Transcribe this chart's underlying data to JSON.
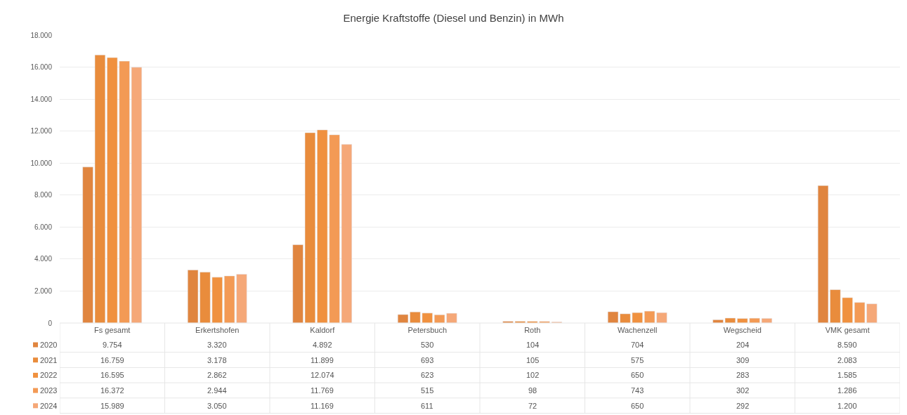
{
  "chart_data": {
    "type": "bar",
    "title": "Energie Kraftstoffe (Diesel und Benzin) in MWh",
    "categories": [
      "Fs gesamt",
      "Erkertshofen",
      "Kaldorf",
      "Petersbuch",
      "Roth",
      "Wachenzell",
      "Wegscheid",
      "VMK gesamt"
    ],
    "series": [
      {
        "name": "2020",
        "color": "#e0853f",
        "values": [
          9754,
          3320,
          4892,
          530,
          104,
          704,
          204,
          8590
        ],
        "value_labels": [
          "9.754",
          "3.320",
          "4.892",
          "530",
          "104",
          "704",
          "204",
          "8.590"
        ]
      },
      {
        "name": "2021",
        "color": "#e98c3c",
        "values": [
          16759,
          3178,
          11899,
          693,
          105,
          575,
          309,
          2083
        ],
        "value_labels": [
          "16.759",
          "3.178",
          "11.899",
          "693",
          "105",
          "575",
          "309",
          "2.083"
        ]
      },
      {
        "name": "2022",
        "color": "#f0913f",
        "values": [
          16595,
          2862,
          12074,
          623,
          102,
          650,
          283,
          1585
        ],
        "value_labels": [
          "16.595",
          "2.862",
          "12.074",
          "623",
          "102",
          "650",
          "283",
          "1.585"
        ]
      },
      {
        "name": "2023",
        "color": "#f39a55",
        "values": [
          16372,
          2944,
          11769,
          515,
          98,
          743,
          302,
          1286
        ],
        "value_labels": [
          "16.372",
          "2.944",
          "11.769",
          "515",
          "98",
          "743",
          "302",
          "1.286"
        ]
      },
      {
        "name": "2024",
        "color": "#f5a878",
        "values": [
          15989,
          3050,
          11169,
          611,
          72,
          650,
          292,
          1200
        ],
        "value_labels": [
          "15.989",
          "3.050",
          "11.169",
          "611",
          "72",
          "650",
          "292",
          "1.200"
        ]
      }
    ],
    "ylim": [
      0,
      18000
    ],
    "yticks": [
      0,
      {
        "value": 2000,
        "label": "2.000"
      },
      {
        "value": 4000,
        "label": "4.000"
      },
      {
        "value": 6000,
        "label": "6.000"
      },
      {
        "value": 8000,
        "label": "8.000"
      },
      {
        "value": 10000,
        "label": "10.000"
      },
      {
        "value": 12000,
        "label": "12.000"
      },
      {
        "value": 14000,
        "label": "14.000"
      },
      {
        "value": 16000,
        "label": "16.000"
      },
      {
        "value": 18000,
        "label": "18.000"
      }
    ],
    "grid": "y",
    "legend": "bottom left"
  }
}
